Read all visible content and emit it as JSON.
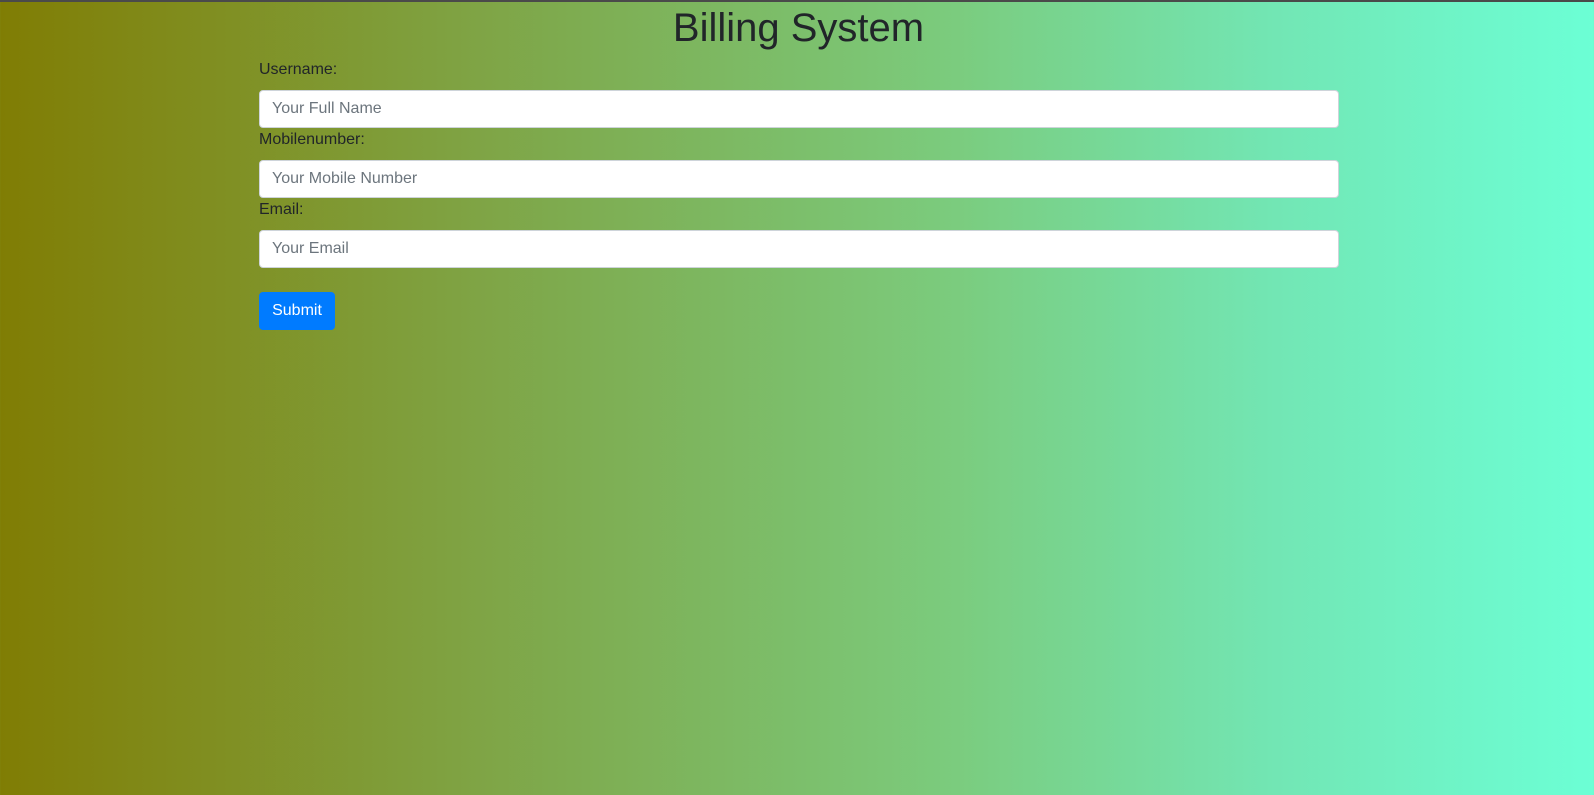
{
  "page": {
    "title": "Billing System"
  },
  "form": {
    "fields": [
      {
        "label": "Username:",
        "placeholder": "Your Full Name",
        "value": ""
      },
      {
        "label": "Mobilenumber:",
        "placeholder": "Your Mobile Number",
        "value": ""
      },
      {
        "label": "Email:",
        "placeholder": "Your Email",
        "value": ""
      }
    ],
    "submit_label": "Submit"
  },
  "colors": {
    "gradient_start": "#807d04",
    "gradient_end": "#6cffd5",
    "button": "#007bff"
  }
}
